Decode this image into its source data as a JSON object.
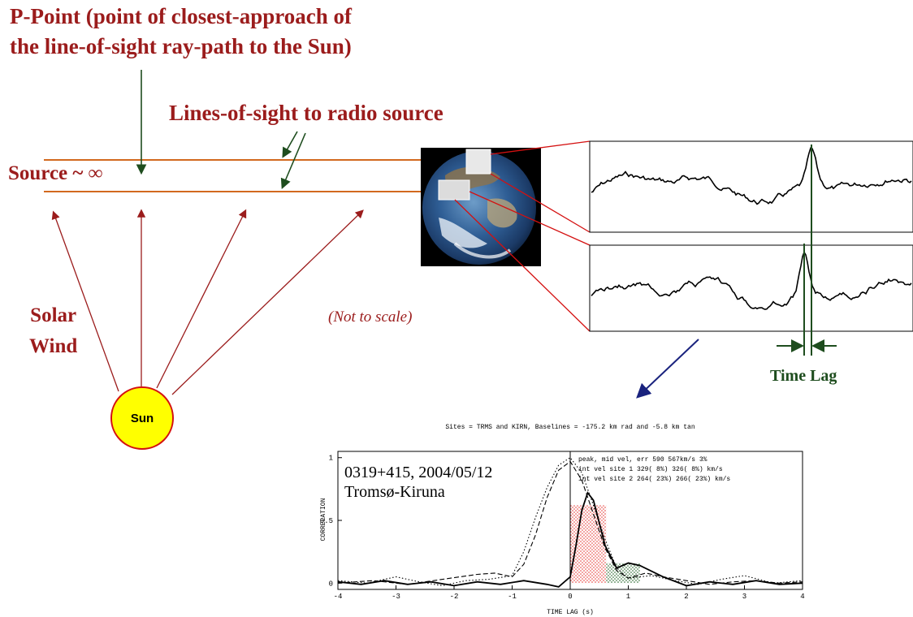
{
  "labels": {
    "p_point_line1": "P-Point (point of closest-approach of",
    "p_point_line2": "the line-of-sight ray-path to the Sun)",
    "lines_of_sight": "Lines-of-sight to radio source",
    "source": "Source ~ ∞",
    "solar_line1": "Solar",
    "solar_line2": "Wind",
    "not_to_scale": "(Not to scale)",
    "sun": "Sun",
    "time_lag": "Time Lag"
  },
  "colors": {
    "label_red": "#9b1c1c",
    "line_orange": "#d2691e",
    "arrow_green": "#1e4d1e",
    "arrow_blue": "#1a237e",
    "sun_fill": "#ffff00",
    "red_lines": "#d41010"
  },
  "chart_data": {
    "type": "line",
    "title": "Sites = TRMS and KIRN,   Baselines =  -175.2 km rad and   -5.8 km tan",
    "xlabel": "TIME LAG (s)",
    "ylabel": "CORRELATION",
    "xlim": [
      -4,
      4
    ],
    "ylim": [
      -0.05,
      1.05
    ],
    "xticks": [
      -4,
      -3,
      -2,
      -1,
      0,
      1,
      2,
      3,
      4
    ],
    "yticks": [
      0,
      0.5,
      1
    ],
    "annotation_big": "0319+415, 2004/05/12",
    "annotation_sites": "Tromsø-Kiruna",
    "info_lines": [
      "peak, mid vel, err  590  567km/s  3%",
      "int vel site 1  329(  8%)  326(  8%) km/s",
      "int vel site 2  264( 23%)  266( 23%) km/s"
    ],
    "series": [
      {
        "style": "solid",
        "x": [
          -4,
          -3.6,
          -3.2,
          -2.8,
          -2.4,
          -2.0,
          -1.6,
          -1.2,
          -0.8,
          -0.4,
          -0.2,
          0,
          0.1,
          0.2,
          0.3,
          0.4,
          0.5,
          0.6,
          0.8,
          1.0,
          1.2,
          1.6,
          2.0,
          2.4,
          2.8,
          3.2,
          3.6,
          4
        ],
        "y": [
          0.01,
          -0.01,
          0.02,
          -0.01,
          0.01,
          -0.02,
          0.01,
          -0.01,
          0.02,
          -0.01,
          -0.03,
          0.05,
          0.3,
          0.58,
          0.72,
          0.66,
          0.48,
          0.3,
          0.12,
          0.16,
          0.14,
          0.05,
          -0.02,
          0.01,
          -0.01,
          0.02,
          -0.01,
          0.0
        ]
      },
      {
        "style": "dashed",
        "x": [
          -4,
          -3.4,
          -2.8,
          -2.2,
          -1.6,
          -1.3,
          -1.0,
          -0.8,
          -0.6,
          -0.4,
          -0.2,
          0,
          0.2,
          0.4,
          0.6,
          0.8,
          1.0,
          1.3,
          1.6,
          2.0,
          2.4,
          2.8,
          3.2,
          3.6,
          4
        ],
        "y": [
          0.0,
          0.02,
          -0.01,
          0.03,
          0.07,
          0.08,
          0.05,
          0.15,
          0.38,
          0.68,
          0.9,
          0.97,
          0.82,
          0.55,
          0.28,
          0.1,
          0.04,
          0.08,
          0.05,
          0.02,
          -0.01,
          0.01,
          0.02,
          0.0,
          0.01
        ]
      },
      {
        "style": "dotted",
        "x": [
          -4,
          -3.5,
          -3.0,
          -2.6,
          -2.2,
          -1.8,
          -1.4,
          -1.0,
          -0.8,
          -0.6,
          -0.4,
          -0.2,
          0,
          0.2,
          0.4,
          0.6,
          0.8,
          1.0,
          1.4,
          1.8,
          2.2,
          2.6,
          3.0,
          3.5,
          4
        ],
        "y": [
          0.02,
          0.0,
          0.05,
          0.01,
          -0.02,
          0.02,
          0.03,
          0.06,
          0.25,
          0.52,
          0.76,
          0.94,
          1.0,
          0.88,
          0.62,
          0.35,
          0.12,
          0.04,
          0.06,
          0.02,
          -0.01,
          0.03,
          0.06,
          0.0,
          0.02
        ]
      }
    ],
    "hatched_regions": [
      {
        "color": "red",
        "x_from": 0.0,
        "x_to": 0.62,
        "y_top": 0.62
      },
      {
        "color": "green",
        "x_from": 0.62,
        "x_to": 1.2,
        "y_top": 0.16
      }
    ]
  }
}
